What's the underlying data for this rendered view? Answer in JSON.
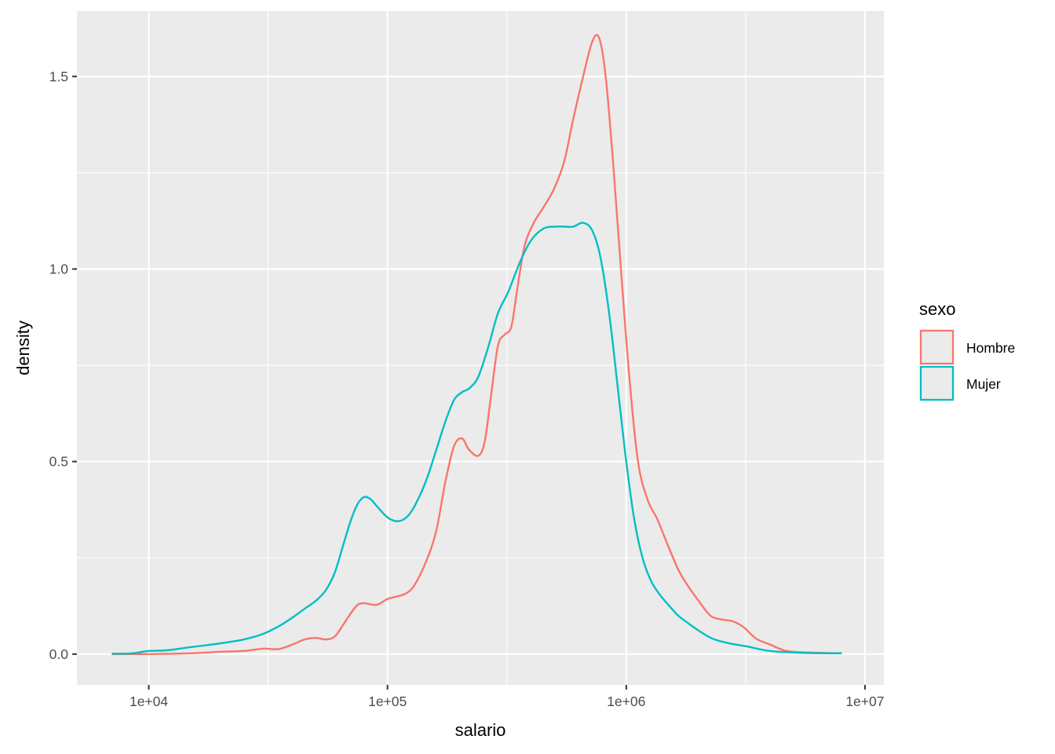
{
  "chart_data": {
    "type": "line",
    "xlabel": "salario",
    "ylabel": "density",
    "x_scale": "log10",
    "xlim": [
      5000,
      12000000
    ],
    "ylim": [
      -0.08,
      1.67
    ],
    "x_ticks": [
      {
        "value": 10000,
        "label": "1e+04"
      },
      {
        "value": 100000,
        "label": "1e+05"
      },
      {
        "value": 1000000,
        "label": "1e+06"
      },
      {
        "value": 10000000,
        "label": "1e+07"
      }
    ],
    "x_minor": [
      31623,
      316228,
      3162278
    ],
    "y_ticks": [
      {
        "value": 0.0,
        "label": "0.0"
      },
      {
        "value": 0.5,
        "label": "0.5"
      },
      {
        "value": 1.0,
        "label": "1.0"
      },
      {
        "value": 1.5,
        "label": "1.5"
      }
    ],
    "y_minor": [
      0.25,
      0.75,
      1.25
    ],
    "grid": true,
    "panel_background": "#ebebeb",
    "legend": {
      "title": "sexo",
      "position": "right",
      "entries": [
        {
          "label": "Hombre",
          "color": "#f8766d"
        },
        {
          "label": "Mujer",
          "color": "#00bfc4"
        }
      ]
    },
    "series": [
      {
        "name": "Hombre",
        "color": "#f8766d",
        "points": [
          [
            7000,
            0.0
          ],
          [
            10000,
            0.0
          ],
          [
            15000,
            0.002
          ],
          [
            20000,
            0.006
          ],
          [
            25000,
            0.008
          ],
          [
            30000,
            0.014
          ],
          [
            35000,
            0.013
          ],
          [
            40000,
            0.025
          ],
          [
            45000,
            0.038
          ],
          [
            50000,
            0.042
          ],
          [
            55000,
            0.038
          ],
          [
            60000,
            0.045
          ],
          [
            65000,
            0.075
          ],
          [
            70000,
            0.105
          ],
          [
            75000,
            0.128
          ],
          [
            80000,
            0.132
          ],
          [
            90000,
            0.128
          ],
          [
            100000,
            0.143
          ],
          [
            110000,
            0.15
          ],
          [
            120000,
            0.158
          ],
          [
            130000,
            0.18
          ],
          [
            145000,
            0.24
          ],
          [
            160000,
            0.32
          ],
          [
            175000,
            0.45
          ],
          [
            190000,
            0.54
          ],
          [
            205000,
            0.56
          ],
          [
            220000,
            0.53
          ],
          [
            240000,
            0.515
          ],
          [
            255000,
            0.55
          ],
          [
            270000,
            0.66
          ],
          [
            290000,
            0.8
          ],
          [
            310000,
            0.83
          ],
          [
            330000,
            0.85
          ],
          [
            350000,
            0.95
          ],
          [
            375000,
            1.06
          ],
          [
            410000,
            1.12
          ],
          [
            450000,
            1.16
          ],
          [
            500000,
            1.21
          ],
          [
            550000,
            1.28
          ],
          [
            600000,
            1.39
          ],
          [
            660000,
            1.5
          ],
          [
            720000,
            1.59
          ],
          [
            770000,
            1.6
          ],
          [
            820000,
            1.5
          ],
          [
            880000,
            1.28
          ],
          [
            950000,
            1.0
          ],
          [
            1030000,
            0.72
          ],
          [
            1120000,
            0.5
          ],
          [
            1230000,
            0.4
          ],
          [
            1350000,
            0.35
          ],
          [
            1500000,
            0.28
          ],
          [
            1650000,
            0.22
          ],
          [
            1800000,
            0.18
          ],
          [
            2000000,
            0.14
          ],
          [
            2250000,
            0.1
          ],
          [
            2500000,
            0.09
          ],
          [
            2800000,
            0.085
          ],
          [
            3100000,
            0.07
          ],
          [
            3500000,
            0.04
          ],
          [
            4000000,
            0.025
          ],
          [
            4700000,
            0.008
          ],
          [
            6000000,
            0.004
          ],
          [
            8000000,
            0.002
          ]
        ]
      },
      {
        "name": "Mujer",
        "color": "#00bfc4",
        "points": [
          [
            7000,
            0.001
          ],
          [
            8500,
            0.002
          ],
          [
            10000,
            0.008
          ],
          [
            12000,
            0.01
          ],
          [
            15000,
            0.018
          ],
          [
            20000,
            0.028
          ],
          [
            25000,
            0.038
          ],
          [
            30000,
            0.052
          ],
          [
            35000,
            0.072
          ],
          [
            40000,
            0.095
          ],
          [
            45000,
            0.118
          ],
          [
            50000,
            0.138
          ],
          [
            55000,
            0.165
          ],
          [
            60000,
            0.21
          ],
          [
            65000,
            0.28
          ],
          [
            70000,
            0.345
          ],
          [
            75000,
            0.39
          ],
          [
            80000,
            0.408
          ],
          [
            85000,
            0.402
          ],
          [
            90000,
            0.385
          ],
          [
            100000,
            0.355
          ],
          [
            110000,
            0.345
          ],
          [
            120000,
            0.355
          ],
          [
            130000,
            0.385
          ],
          [
            145000,
            0.45
          ],
          [
            160000,
            0.53
          ],
          [
            175000,
            0.605
          ],
          [
            190000,
            0.66
          ],
          [
            205000,
            0.68
          ],
          [
            220000,
            0.69
          ],
          [
            240000,
            0.72
          ],
          [
            265000,
            0.8
          ],
          [
            290000,
            0.885
          ],
          [
            320000,
            0.94
          ],
          [
            360000,
            1.02
          ],
          [
            400000,
            1.075
          ],
          [
            450000,
            1.105
          ],
          [
            500000,
            1.11
          ],
          [
            550000,
            1.11
          ],
          [
            600000,
            1.11
          ],
          [
            660000,
            1.12
          ],
          [
            720000,
            1.1
          ],
          [
            780000,
            1.03
          ],
          [
            850000,
            0.88
          ],
          [
            930000,
            0.67
          ],
          [
            1000000,
            0.5
          ],
          [
            1080000,
            0.35
          ],
          [
            1170000,
            0.25
          ],
          [
            1270000,
            0.19
          ],
          [
            1380000,
            0.155
          ],
          [
            1500000,
            0.128
          ],
          [
            1650000,
            0.1
          ],
          [
            1800000,
            0.082
          ],
          [
            2000000,
            0.062
          ],
          [
            2300000,
            0.04
          ],
          [
            2700000,
            0.028
          ],
          [
            3200000,
            0.02
          ],
          [
            4000000,
            0.008
          ],
          [
            5500000,
            0.003
          ],
          [
            8000000,
            0.002
          ]
        ]
      }
    ]
  }
}
